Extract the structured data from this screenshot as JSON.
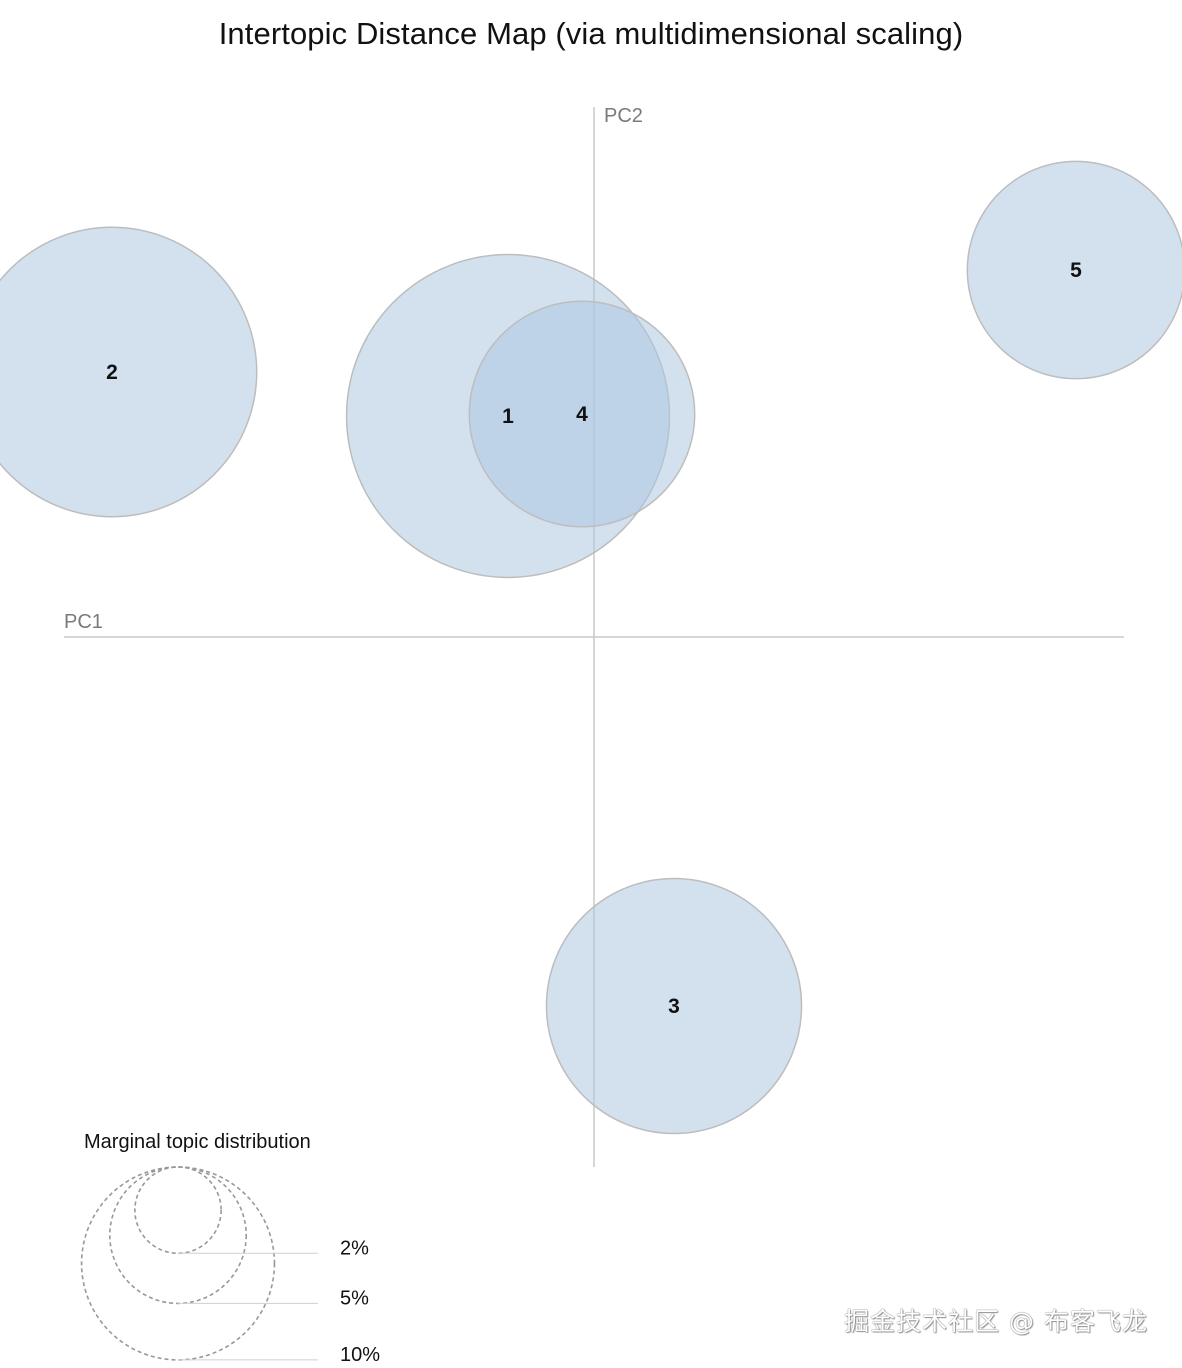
{
  "chart_data": {
    "type": "scatter",
    "title": "Intertopic Distance Map (via multidimensional scaling)",
    "x_axis_label": "PC1",
    "y_axis_label": "PC2",
    "bubble_color": "#aec8e2",
    "bubble_stroke": "#bdbdbd",
    "topics": [
      {
        "id": "1",
        "pc1": -0.086,
        "pc2": 0.221
      },
      {
        "id": "2",
        "pc1": -0.482,
        "pc2": 0.265
      },
      {
        "id": "3",
        "pc1": 0.08,
        "pc2": -0.369
      },
      {
        "id": "4",
        "pc1": -0.012,
        "pc2": 0.223
      },
      {
        "id": "5",
        "pc1": 0.482,
        "pc2": 0.367
      }
    ],
    "topic_sizes_percent": {
      "1": 11.7,
      "2": 9.4,
      "3": 7.3,
      "4": 5.7,
      "5": 5.3
    },
    "legend": {
      "title": "Marginal topic distribution",
      "levels": [
        {
          "label": "2%",
          "percent": 2
        },
        {
          "label": "5%",
          "percent": 5
        },
        {
          "label": "10%",
          "percent": 10
        }
      ]
    },
    "watermark": "掘金技术社区 @ 布客飞龙"
  }
}
